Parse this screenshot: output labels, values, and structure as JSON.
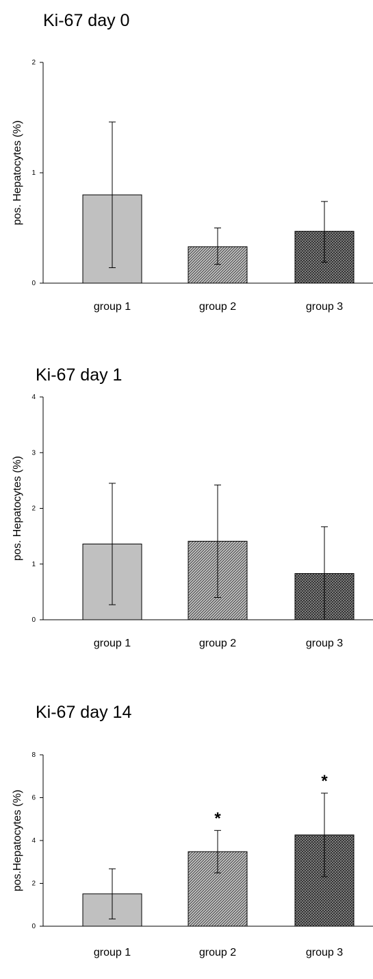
{
  "chart_data": [
    {
      "type": "bar",
      "title": "Ki-67 day 0",
      "ylabel": "pos. Hepatocytes (%)",
      "categories": [
        "group 1",
        "group 2",
        "group 3"
      ],
      "values": [
        0.8,
        0.33,
        0.47
      ],
      "error_low": [
        0.14,
        0.17,
        0.19
      ],
      "error_high": [
        1.46,
        0.5,
        0.74
      ],
      "significance": [
        "",
        "",
        ""
      ],
      "ylim": [
        0,
        2
      ],
      "yticks": [
        "0",
        "1",
        "2"
      ]
    },
    {
      "type": "bar",
      "title": "Ki-67 day 1",
      "ylabel": "pos. Hepatocytes (%)",
      "categories": [
        "group 1",
        "group 2",
        "group 3"
      ],
      "values": [
        1.36,
        1.41,
        0.83
      ],
      "error_low": [
        0.27,
        0.4,
        0.0
      ],
      "error_high": [
        2.45,
        2.42,
        1.67
      ],
      "significance": [
        "",
        "",
        ""
      ],
      "ylim": [
        0,
        4
      ],
      "yticks": [
        "0",
        "1",
        "2",
        "3",
        "4"
      ]
    },
    {
      "type": "bar",
      "title": "Ki-67 day 14",
      "ylabel": "pos.Hepatocytes (%)",
      "categories": [
        "group 1",
        "group 2",
        "group 3"
      ],
      "values": [
        1.51,
        3.48,
        4.26
      ],
      "error_low": [
        0.34,
        2.49,
        2.31
      ],
      "error_high": [
        2.68,
        4.47,
        6.21
      ],
      "significance": [
        "",
        "*",
        "*"
      ],
      "ylim": [
        0,
        8
      ],
      "yticks": [
        "0",
        "2",
        "4",
        "6",
        "8"
      ]
    }
  ],
  "bar_fills": [
    "solid-gray",
    "diagonal-hatch",
    "crosshatch"
  ],
  "colors": {
    "bar_light": "#c0c0c0",
    "hatch_dark": "#404040",
    "axis": "#000000"
  }
}
